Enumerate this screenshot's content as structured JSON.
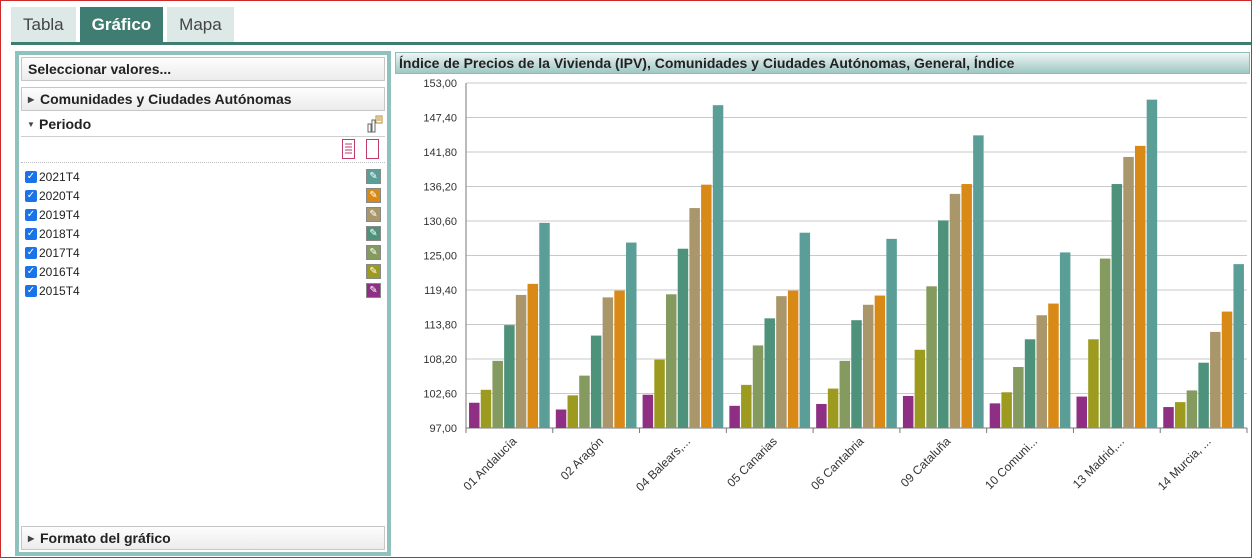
{
  "tabs": [
    {
      "label": "Tabla"
    },
    {
      "label": "Gráfico"
    },
    {
      "label": "Mapa"
    }
  ],
  "left_panel": {
    "select_values": "Seleccionar valores...",
    "section_regions": "Comunidades y Ciudades Autónomas",
    "section_period": "Periodo",
    "section_format": "Formato del gráfico",
    "periods": [
      {
        "label": "2021T4",
        "checked": true,
        "color": "#5b9e97"
      },
      {
        "label": "2020T4",
        "checked": true,
        "color": "#d98a16"
      },
      {
        "label": "2019T4",
        "checked": true,
        "color": "#a9966b"
      },
      {
        "label": "2018T4",
        "checked": true,
        "color": "#4f927c"
      },
      {
        "label": "2017T4",
        "checked": true,
        "color": "#849a5e"
      },
      {
        "label": "2016T4",
        "checked": true,
        "color": "#9d9b1f"
      },
      {
        "label": "2015T4",
        "checked": true,
        "color": "#8e2f84"
      }
    ]
  },
  "chart_data": {
    "type": "bar",
    "title": "Índice de Precios de la Vivienda (IPV), Comunidades y Ciudades Autónomas, General, Índice",
    "categories": [
      "01 Andalucía",
      "02 Aragón",
      "04 Balears,...",
      "05 Canarias",
      "06 Cantabria",
      "09 Cataluña",
      "10 Comuni...",
      "13 Madrid,...",
      "14 Murcia, ..."
    ],
    "ylim": [
      97,
      153
    ],
    "yticks": [
      "97,00",
      "102,60",
      "108,20",
      "113,80",
      "119,40",
      "125,00",
      "130,60",
      "136,20",
      "141,80",
      "147,40",
      "153,00"
    ],
    "grid": true,
    "series": [
      {
        "name": "2015T4",
        "color": "#8e2f84",
        "values": [
          101.1,
          100.0,
          102.4,
          100.6,
          100.9,
          102.2,
          101.0,
          102.1,
          100.4
        ]
      },
      {
        "name": "2016T4",
        "color": "#9d9b1f",
        "values": [
          103.2,
          102.3,
          108.1,
          104.0,
          103.4,
          109.7,
          102.8,
          111.4,
          101.2
        ]
      },
      {
        "name": "2017T4",
        "color": "#849a5e",
        "values": [
          107.9,
          105.5,
          118.7,
          110.4,
          107.9,
          120.0,
          106.9,
          124.5,
          103.1
        ]
      },
      {
        "name": "2018T4",
        "color": "#4f927c",
        "values": [
          113.7,
          112.0,
          126.1,
          114.8,
          114.5,
          130.7,
          111.4,
          136.6,
          107.6
        ]
      },
      {
        "name": "2019T4",
        "color": "#a9966b",
        "values": [
          118.6,
          118.2,
          132.7,
          118.4,
          117.0,
          135.0,
          115.3,
          141.0,
          112.6
        ]
      },
      {
        "name": "2020T4",
        "color": "#d98a16",
        "values": [
          120.4,
          119.3,
          136.5,
          119.3,
          118.5,
          136.6,
          117.2,
          142.8,
          115.9
        ]
      },
      {
        "name": "2021T4",
        "color": "#5b9e97",
        "values": [
          130.3,
          127.1,
          149.4,
          128.7,
          127.7,
          144.5,
          125.5,
          150.3,
          123.6
        ]
      }
    ]
  }
}
